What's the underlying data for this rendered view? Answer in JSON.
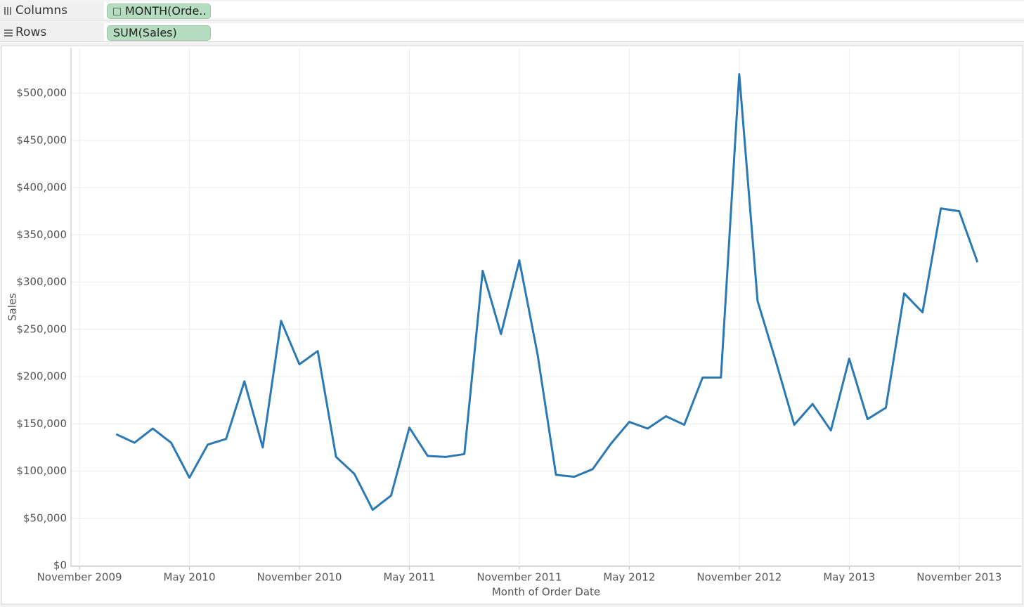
{
  "shelves": {
    "columns": {
      "label": "Columns",
      "pill": "MONTH(Orde.."
    },
    "rows": {
      "label": "Rows",
      "pill": "SUM(Sales)"
    }
  },
  "chart_data": {
    "type": "line",
    "x_label": "Month of Order Date",
    "y_label": "Sales",
    "color": "#2a78b4",
    "grid": true,
    "x": [
      "2010-01",
      "2010-02",
      "2010-03",
      "2010-04",
      "2010-05",
      "2010-06",
      "2010-07",
      "2010-08",
      "2010-09",
      "2010-10",
      "2010-11",
      "2010-12",
      "2011-01",
      "2011-02",
      "2011-03",
      "2011-04",
      "2011-05",
      "2011-06",
      "2011-07",
      "2011-08",
      "2011-09",
      "2011-10",
      "2011-11",
      "2011-12",
      "2012-01",
      "2012-02",
      "2012-03",
      "2012-04",
      "2012-05",
      "2012-06",
      "2012-07",
      "2012-08",
      "2012-09",
      "2012-10",
      "2012-11",
      "2012-12",
      "2013-01",
      "2013-02",
      "2013-03",
      "2013-04",
      "2013-05",
      "2013-06",
      "2013-07",
      "2013-08",
      "2013-09",
      "2013-10",
      "2013-11",
      "2013-12"
    ],
    "values": [
      139000,
      130000,
      145000,
      130000,
      93000,
      128000,
      134000,
      195000,
      125000,
      259000,
      213000,
      227000,
      115000,
      97000,
      59000,
      74000,
      146000,
      116000,
      115000,
      118000,
      312000,
      245000,
      323000,
      223000,
      96000,
      94000,
      102000,
      129000,
      152000,
      145000,
      158000,
      149000,
      199000,
      199000,
      520000,
      280000,
      216000,
      149000,
      171000,
      143000,
      219000,
      155000,
      167000,
      288000,
      268000,
      378000,
      375000,
      321000
    ],
    "xlim": [
      "2009-10",
      "2014-02"
    ],
    "xticks": [
      {
        "value": "2009-11",
        "label": "November 2009"
      },
      {
        "value": "2010-05",
        "label": "May 2010"
      },
      {
        "value": "2010-11",
        "label": "November 2010"
      },
      {
        "value": "2011-05",
        "label": "May 2011"
      },
      {
        "value": "2011-11",
        "label": "November 2011"
      },
      {
        "value": "2012-05",
        "label": "May 2012"
      },
      {
        "value": "2012-11",
        "label": "November 2012"
      },
      {
        "value": "2013-05",
        "label": "May 2013"
      },
      {
        "value": "2013-11",
        "label": "November 2013"
      }
    ],
    "ylim": [
      0,
      548000
    ],
    "yticks": [
      {
        "value": 0,
        "label": "$0"
      },
      {
        "value": 50000,
        "label": "$50,000"
      },
      {
        "value": 100000,
        "label": "$100,000"
      },
      {
        "value": 150000,
        "label": "$150,000"
      },
      {
        "value": 200000,
        "label": "$200,000"
      },
      {
        "value": 250000,
        "label": "$250,000"
      },
      {
        "value": 300000,
        "label": "$300,000"
      },
      {
        "value": 350000,
        "label": "$350,000"
      },
      {
        "value": 400000,
        "label": "$400,000"
      },
      {
        "value": 450000,
        "label": "$450,000"
      },
      {
        "value": 500000,
        "label": "$500,000"
      }
    ]
  }
}
